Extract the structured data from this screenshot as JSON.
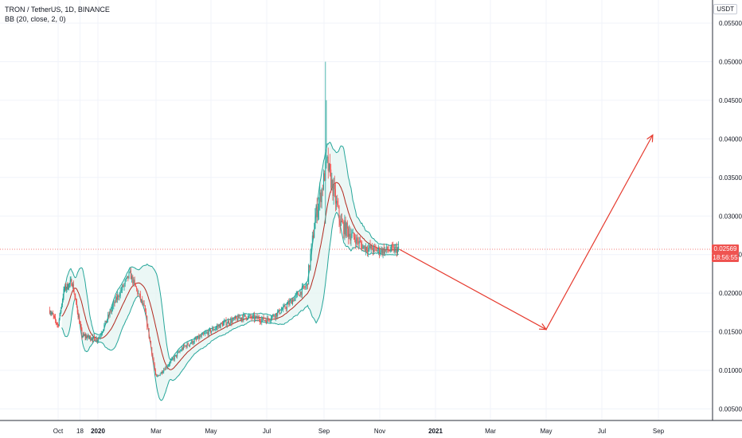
{
  "legend": {
    "title": "TRON / TetherUS, 1D, BINANCE",
    "indicator": "BB (20, close, 2, 0)"
  },
  "currency_label": "USDT",
  "last_price": {
    "value": "0.02569",
    "countdown": "18:56:55"
  },
  "colors": {
    "up": "#26a69a",
    "down": "#ef5350",
    "band": "#26a69a",
    "basis": "#b2281e",
    "arrow": "#e63a2e",
    "band_fill": "#e3f4f1",
    "grid": "#f0f3fa",
    "price_line": "#ef5350"
  },
  "chart_data": {
    "type": "candlestick",
    "symbol": "TRXUSDT",
    "interval": "1D",
    "exchange": "BINANCE",
    "x_axis": {
      "ticks": [
        {
          "label": "Oct",
          "x": 1.0,
          "bold": false
        },
        {
          "label": "18",
          "x": 1.55,
          "bold": false
        },
        {
          "label": "2020",
          "x": 2.0,
          "bold": true
        },
        {
          "label": "Mar",
          "x": 3.0,
          "bold": false
        },
        {
          "label": "May",
          "x": 4.0,
          "bold": false
        },
        {
          "label": "Jul",
          "x": 5.0,
          "bold": false
        },
        {
          "label": "Sep",
          "x": 6.0,
          "bold": false
        },
        {
          "label": "Nov",
          "x": 7.0,
          "bold": false
        },
        {
          "label": "2021",
          "x": 8.0,
          "bold": true
        },
        {
          "label": "Mar",
          "x": 9.0,
          "bold": false
        },
        {
          "label": "May",
          "x": 10.0,
          "bold": false
        },
        {
          "label": "Jul",
          "x": 11.0,
          "bold": false
        },
        {
          "label": "Sep",
          "x": 12.0,
          "bold": false
        }
      ]
    },
    "y_axis": {
      "ticks": [
        "0.05500",
        "0.05000",
        "0.04500",
        "0.04000",
        "0.03500",
        "0.03000",
        "0.02500",
        "0.02000",
        "0.01500",
        "0.01000",
        "0.00500"
      ],
      "range": [
        0.0045,
        0.0565
      ]
    },
    "price_anchors": [
      [
        0.78,
        0.0178
      ],
      [
        1.0,
        0.0158
      ],
      [
        1.15,
        0.0205
      ],
      [
        1.35,
        0.0215
      ],
      [
        1.6,
        0.0145
      ],
      [
        2.0,
        0.014
      ],
      [
        2.3,
        0.019
      ],
      [
        2.55,
        0.0225
      ],
      [
        2.8,
        0.018
      ],
      [
        3.0,
        0.009
      ],
      [
        3.5,
        0.013
      ],
      [
        4.2,
        0.016
      ],
      [
        4.6,
        0.017
      ],
      [
        5.0,
        0.0165
      ],
      [
        5.3,
        0.018
      ],
      [
        5.7,
        0.021
      ],
      [
        5.85,
        0.03
      ],
      [
        5.95,
        0.033
      ],
      [
        6.05,
        0.037
      ],
      [
        6.3,
        0.029
      ],
      [
        6.7,
        0.026
      ],
      [
        7.0,
        0.0255
      ],
      [
        7.35,
        0.02569
      ]
    ],
    "spike": {
      "x": 6.03,
      "high": 0.05,
      "low": 0.029
    },
    "drawing": {
      "type": "arrow-path",
      "points": [
        {
          "x": 7.35,
          "y": 0.02569
        },
        {
          "x": 10.0,
          "y": 0.0153
        },
        {
          "x": 11.9,
          "y": 0.0405
        }
      ]
    }
  }
}
